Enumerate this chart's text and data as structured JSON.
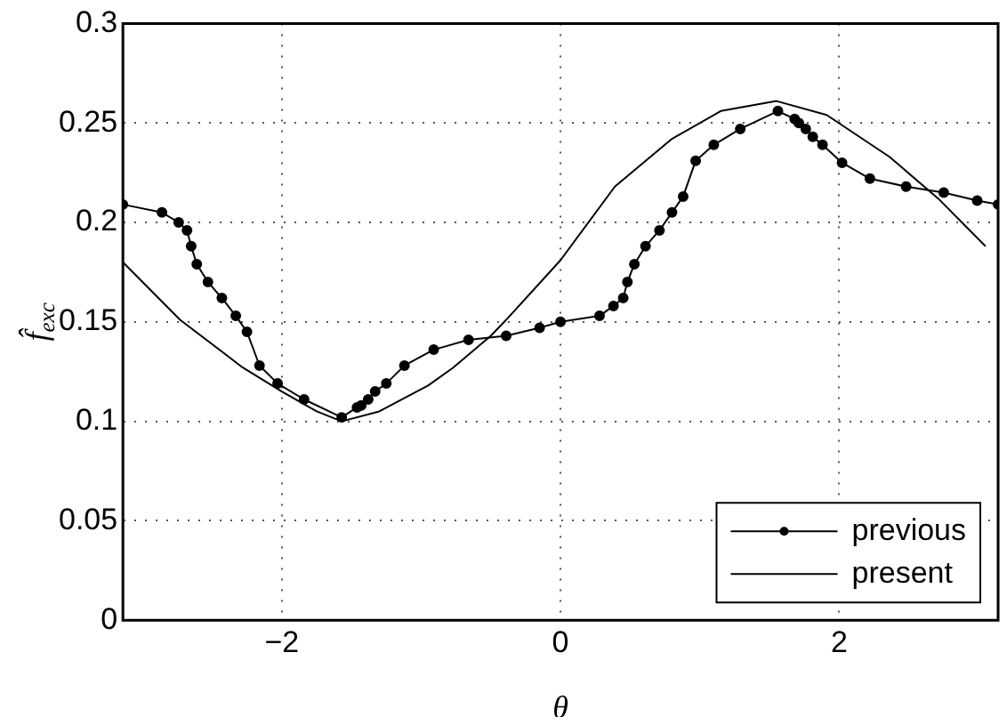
{
  "chart_data": {
    "type": "line",
    "xlabel": "θ",
    "ylabel": "f̂$_{exc}$",
    "xlim": [
      -3.14,
      3.14
    ],
    "ylim": [
      0,
      0.3
    ],
    "xticks": [
      -2,
      0,
      2
    ],
    "yticks": [
      0,
      0.05,
      0.1,
      0.15,
      0.2,
      0.25,
      0.3
    ],
    "grid": true,
    "legend": "bottom right",
    "line_style": "solid",
    "series": [
      {
        "name": "previous",
        "color": "#000000",
        "marker": "circle",
        "x": [
          -3.14,
          -2.86,
          -2.74,
          -2.68,
          -2.65,
          -2.61,
          -2.53,
          -2.43,
          -2.33,
          -2.25,
          -2.16,
          -2.03,
          -1.84,
          -1.57,
          -1.46,
          -1.43,
          -1.38,
          -1.33,
          -1.25,
          -1.12,
          -0.91,
          -0.66,
          -0.39,
          -0.15,
          0.0,
          0.28,
          0.38,
          0.45,
          0.48,
          0.53,
          0.61,
          0.71,
          0.8,
          0.88,
          0.97,
          1.1,
          1.29,
          1.56,
          1.68,
          1.71,
          1.76,
          1.81,
          1.88,
          2.02,
          2.22,
          2.48,
          2.75,
          2.99,
          3.14
        ],
        "values": [
          0.209,
          0.205,
          0.2,
          0.196,
          0.188,
          0.179,
          0.17,
          0.162,
          0.153,
          0.145,
          0.128,
          0.119,
          0.111,
          0.102,
          0.107,
          0.108,
          0.111,
          0.115,
          0.119,
          0.128,
          0.136,
          0.141,
          0.143,
          0.147,
          0.15,
          0.153,
          0.158,
          0.162,
          0.17,
          0.179,
          0.188,
          0.196,
          0.205,
          0.213,
          0.231,
          0.239,
          0.247,
          0.256,
          0.252,
          0.25,
          0.247,
          0.243,
          0.239,
          0.23,
          0.222,
          0.218,
          0.215,
          0.211,
          0.209
        ]
      },
      {
        "name": "present",
        "color": "#000000",
        "marker": "none",
        "x": [
          -3.14,
          -2.73,
          -2.28,
          -2.0,
          -1.75,
          -1.57,
          -1.3,
          -0.95,
          -0.77,
          -0.5,
          -0.39,
          0.0,
          0.39,
          0.8,
          1.15,
          1.55,
          1.91,
          2.36,
          2.71,
          3.05
        ],
        "values": [
          0.18,
          0.151,
          0.127,
          0.115,
          0.105,
          0.1,
          0.105,
          0.118,
          0.127,
          0.143,
          0.151,
          0.181,
          0.218,
          0.242,
          0.256,
          0.261,
          0.254,
          0.233,
          0.212,
          0.188
        ]
      }
    ]
  }
}
